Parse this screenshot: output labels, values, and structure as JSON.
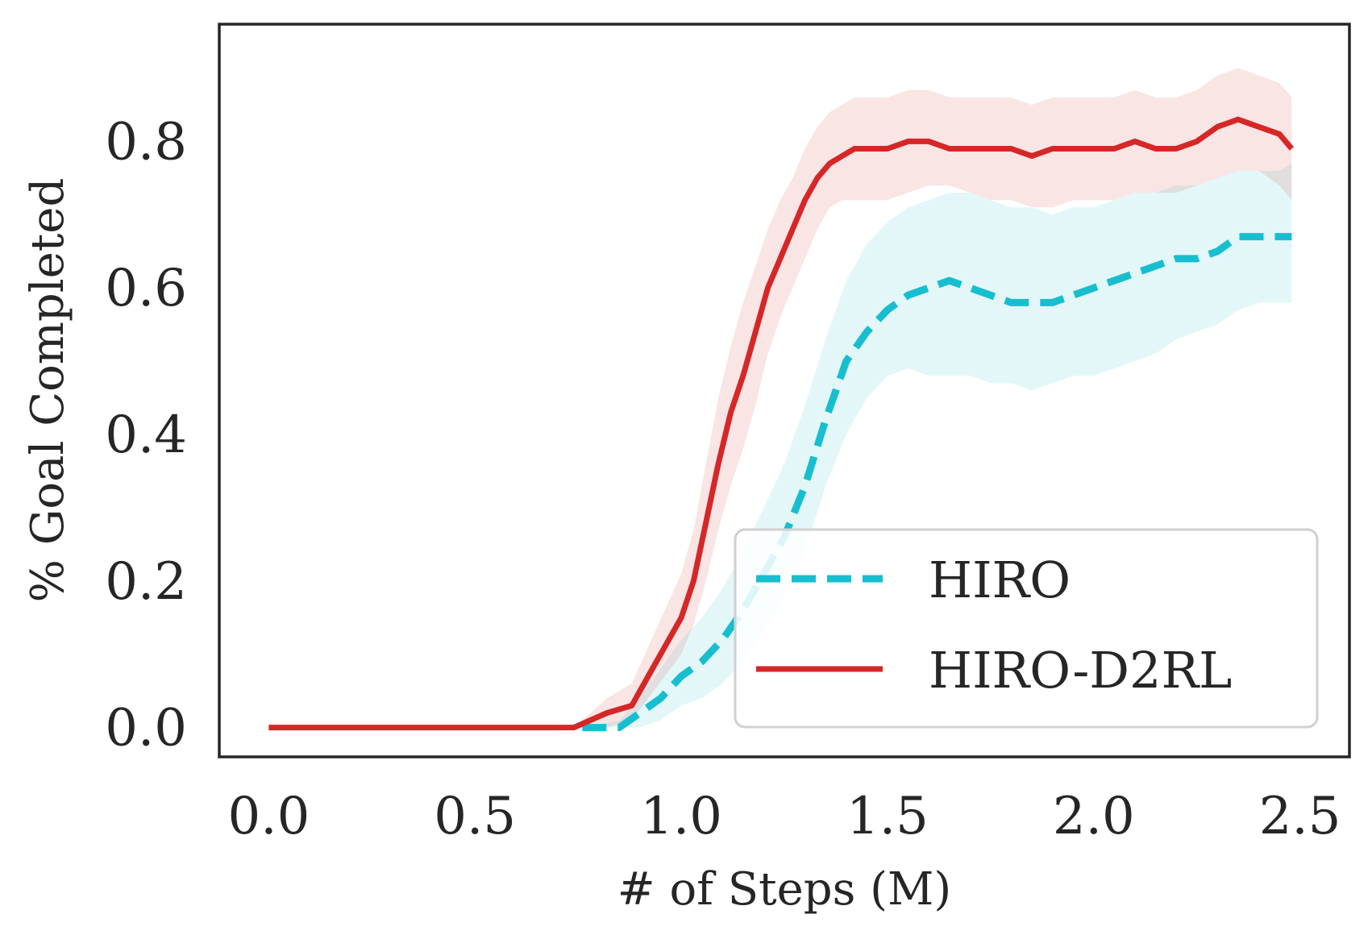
{
  "chart_data": {
    "type": "line",
    "title": "",
    "xlabel": "# of Steps (M)",
    "ylabel": "% Goal Completed",
    "xlim": [
      -0.12,
      2.62
    ],
    "ylim": [
      -0.04,
      0.96
    ],
    "xticks": [
      0.0,
      0.5,
      1.0,
      1.5,
      2.0,
      2.5
    ],
    "xtick_labels": [
      "0.0",
      "0.5",
      "1.0",
      "1.5",
      "2.0",
      "2.5"
    ],
    "yticks": [
      0.0,
      0.2,
      0.4,
      0.6,
      0.8
    ],
    "ytick_labels": [
      "0.0",
      "0.2",
      "0.4",
      "0.6",
      "0.8"
    ],
    "grid": false,
    "legend_position": "lower-right",
    "series": [
      {
        "name": "HIRO",
        "color": "#17becf",
        "line_style": "dashed",
        "x": [
          0.76,
          0.85,
          0.9,
          0.95,
          1.0,
          1.05,
          1.1,
          1.15,
          1.2,
          1.25,
          1.3,
          1.35,
          1.4,
          1.45,
          1.5,
          1.55,
          1.6,
          1.65,
          1.7,
          1.75,
          1.8,
          1.85,
          1.9,
          1.95,
          2.0,
          2.05,
          2.1,
          2.15,
          2.2,
          2.25,
          2.3,
          2.35,
          2.4,
          2.45,
          2.48
        ],
        "values": [
          0.0,
          0.0,
          0.02,
          0.04,
          0.07,
          0.09,
          0.12,
          0.16,
          0.21,
          0.26,
          0.33,
          0.42,
          0.5,
          0.54,
          0.57,
          0.59,
          0.6,
          0.61,
          0.6,
          0.59,
          0.58,
          0.58,
          0.58,
          0.59,
          0.6,
          0.61,
          0.62,
          0.63,
          0.64,
          0.64,
          0.65,
          0.67,
          0.67,
          0.67,
          0.67
        ],
        "lower": [
          0.0,
          0.0,
          0.0,
          0.01,
          0.03,
          0.04,
          0.06,
          0.09,
          0.13,
          0.18,
          0.24,
          0.33,
          0.4,
          0.45,
          0.48,
          0.49,
          0.48,
          0.48,
          0.48,
          0.47,
          0.47,
          0.46,
          0.47,
          0.48,
          0.48,
          0.49,
          0.5,
          0.51,
          0.53,
          0.54,
          0.55,
          0.57,
          0.58,
          0.58,
          0.58
        ],
        "upper": [
          0.0,
          0.01,
          0.04,
          0.08,
          0.12,
          0.15,
          0.19,
          0.24,
          0.3,
          0.36,
          0.44,
          0.53,
          0.61,
          0.66,
          0.69,
          0.71,
          0.72,
          0.73,
          0.73,
          0.72,
          0.71,
          0.71,
          0.7,
          0.71,
          0.71,
          0.72,
          0.73,
          0.73,
          0.74,
          0.74,
          0.75,
          0.76,
          0.76,
          0.76,
          0.77
        ]
      },
      {
        "name": "HIRO-D2RL",
        "color": "#d62728",
        "line_style": "solid",
        "x": [
          0.0,
          0.3,
          0.6,
          0.74,
          0.78,
          0.82,
          0.88,
          0.92,
          0.96,
          1.0,
          1.03,
          1.06,
          1.09,
          1.12,
          1.15,
          1.18,
          1.21,
          1.24,
          1.27,
          1.3,
          1.33,
          1.36,
          1.39,
          1.42,
          1.45,
          1.5,
          1.55,
          1.6,
          1.65,
          1.7,
          1.75,
          1.8,
          1.85,
          1.9,
          1.95,
          2.0,
          2.05,
          2.1,
          2.15,
          2.2,
          2.25,
          2.3,
          2.35,
          2.4,
          2.45,
          2.48
        ],
        "values": [
          0.0,
          0.0,
          0.0,
          0.0,
          0.01,
          0.02,
          0.03,
          0.07,
          0.11,
          0.15,
          0.2,
          0.28,
          0.36,
          0.43,
          0.48,
          0.54,
          0.6,
          0.64,
          0.68,
          0.72,
          0.75,
          0.77,
          0.78,
          0.79,
          0.79,
          0.79,
          0.8,
          0.8,
          0.79,
          0.79,
          0.79,
          0.79,
          0.78,
          0.79,
          0.79,
          0.79,
          0.79,
          0.8,
          0.79,
          0.79,
          0.8,
          0.82,
          0.83,
          0.82,
          0.81,
          0.79
        ],
        "lower": [
          0.0,
          0.0,
          0.0,
          0.0,
          0.0,
          0.0,
          0.01,
          0.04,
          0.07,
          0.1,
          0.14,
          0.2,
          0.27,
          0.33,
          0.38,
          0.44,
          0.51,
          0.56,
          0.6,
          0.64,
          0.68,
          0.71,
          0.72,
          0.72,
          0.72,
          0.72,
          0.73,
          0.74,
          0.74,
          0.73,
          0.72,
          0.72,
          0.71,
          0.71,
          0.72,
          0.72,
          0.72,
          0.73,
          0.73,
          0.73,
          0.74,
          0.75,
          0.76,
          0.76,
          0.74,
          0.72
        ],
        "upper": [
          0.0,
          0.0,
          0.0,
          0.0,
          0.02,
          0.04,
          0.06,
          0.11,
          0.16,
          0.21,
          0.27,
          0.36,
          0.45,
          0.52,
          0.58,
          0.63,
          0.68,
          0.72,
          0.75,
          0.79,
          0.82,
          0.84,
          0.85,
          0.86,
          0.86,
          0.86,
          0.87,
          0.87,
          0.86,
          0.86,
          0.86,
          0.86,
          0.85,
          0.86,
          0.86,
          0.86,
          0.86,
          0.87,
          0.86,
          0.86,
          0.87,
          0.89,
          0.9,
          0.89,
          0.88,
          0.86
        ]
      }
    ]
  }
}
